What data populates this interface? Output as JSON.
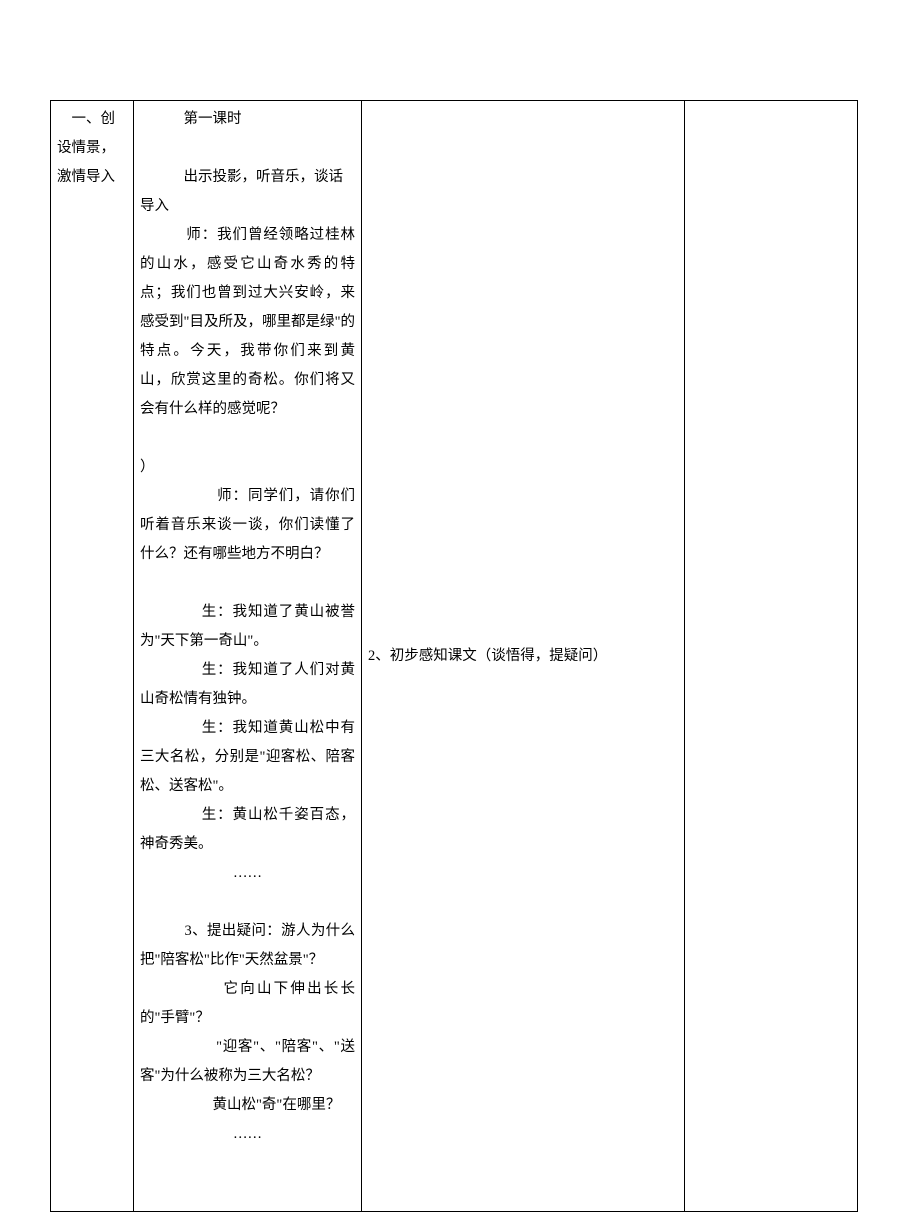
{
  "row": {
    "col1": "　一、创设情景，激情导入",
    "col2": {
      "line1": "第一课时",
      "line2": "出示投影，听音乐，谈话导入",
      "line3": "　　　师：我们曾经领略过桂林的山水，感受它山奇水秀的特点；我们也曾到过大兴安岭，来感受到\"目及所及，哪里都是绿\"的特点。今天，我带你们来到黄山，欣赏这里的奇松。你们将又会有什么样的感觉呢？",
      "line4": "）",
      "line5": "　　　　　师：同学们，请你们听着音乐来谈一谈，你们读懂了什么？还有哪些地方不明白？",
      "line6": "　　　　生：我知道了黄山被誉为\"天下第一奇山\"。",
      "line7": "　　　　生：我知道了人们对黄山奇松情有独钟。",
      "line8": "　　　　生：我知道黄山松中有三大名松，分别是\"迎客松、陪客松、送客松\"。",
      "line9": "　　　　生：黄山松千姿百态，神奇秀美。",
      "line10": "……",
      "line11": "　　　3、提出疑问：游人为什么把\"陪客松\"比作\"天然盆景\"？",
      "line12": "　　　　　它向山下伸出长长的\"手臂\"？",
      "line13": "　　　　　\"迎客\"、\"陪客\"、\"送客\"为什么被称为三大名松？",
      "line14": "　　　　　黄山松\"奇\"在哪里？",
      "line15": "……"
    },
    "col3": "2、初步感知课文（谈悟得，提疑问）",
    "col4": ""
  }
}
